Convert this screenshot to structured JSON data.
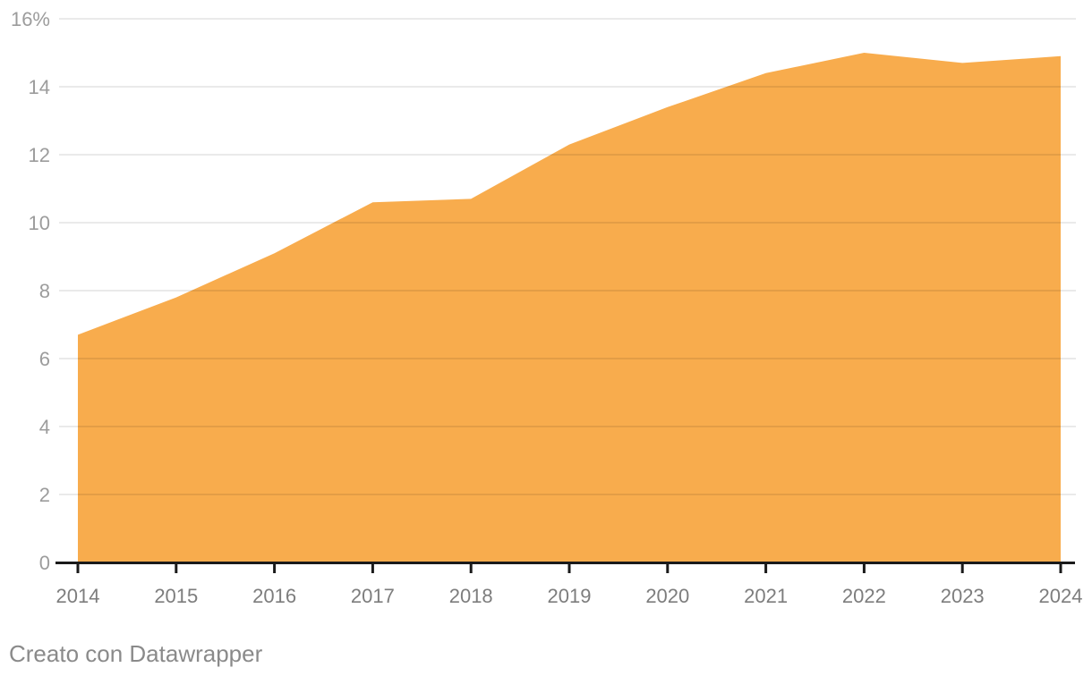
{
  "chart_data": {
    "type": "area",
    "title": "",
    "x": [
      2014,
      2015,
      2016,
      2017,
      2018,
      2019,
      2020,
      2021,
      2022,
      2023,
      2024
    ],
    "x_tick_labels": [
      "2014",
      "2015",
      "2016",
      "2017",
      "2018",
      "2019",
      "2020",
      "2021",
      "2022",
      "2023",
      "2024"
    ],
    "values": [
      6.7,
      7.8,
      9.1,
      10.6,
      10.7,
      12.3,
      13.4,
      14.4,
      15.0,
      14.7,
      14.9
    ],
    "unit": "%",
    "ylim": [
      0,
      16
    ],
    "y_ticks": [
      0,
      2,
      4,
      6,
      8,
      10,
      12,
      14,
      16
    ],
    "y_tick_labels": [
      "0",
      "2",
      "4",
      "6",
      "8",
      "10",
      "12",
      "14",
      "16%"
    ],
    "grid": "horizontal",
    "legend": "none",
    "colors": {
      "area_fill": "#F8AC4D",
      "gridline": "rgba(0,0,0,0.082)",
      "axis_line": "#1a1a1a",
      "y_label": "#9c9c9c",
      "x_label": "#7d7d7d"
    }
  },
  "footer": {
    "credit": "Creato con Datawrapper"
  }
}
